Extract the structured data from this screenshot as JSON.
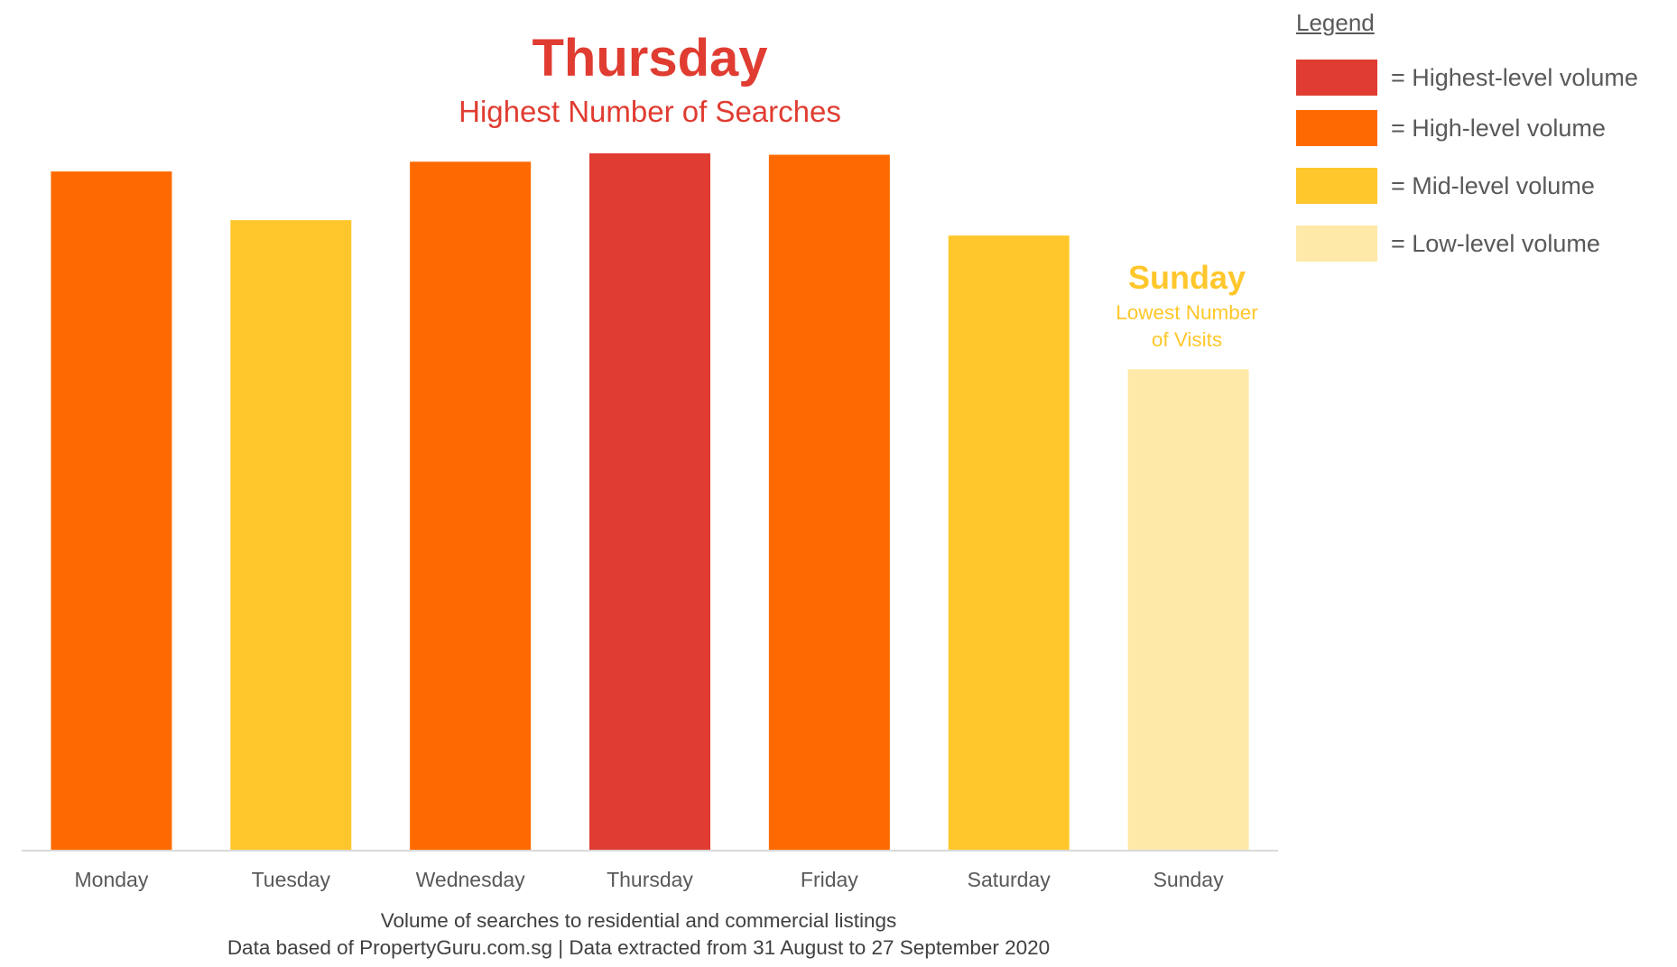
{
  "legend": {
    "title": "Legend",
    "items": [
      {
        "label": "= Highest-level volume",
        "color": "#E03C31"
      },
      {
        "label": "= High-level volume",
        "color": "#FF6A00"
      },
      {
        "label": "= Mid-level volume",
        "color": "#FFC72C"
      },
      {
        "label": "= Low-level volume",
        "color": "#FFE9A8"
      }
    ]
  },
  "highlight_top": {
    "title": "Thursday",
    "subtitle": "Highest Number of Searches",
    "color": "#E03C31"
  },
  "highlight_low": {
    "title": "Sunday",
    "subtitle_line1": "Lowest Number",
    "subtitle_line2": "of Visits",
    "color": "#FFC72C"
  },
  "footer": {
    "line1": "Volume of searches to residential and commercial listings",
    "line2": "Data based of PropertyGuru.com.sg | Data extracted from 31 August to 27 September 2020"
  },
  "chart_data": {
    "type": "bar",
    "categories": [
      "Monday",
      "Tuesday",
      "Wednesday",
      "Thursday",
      "Friday",
      "Saturday",
      "Sunday"
    ],
    "values": [
      97.4,
      90.4,
      98.8,
      100,
      99.8,
      88.2,
      69.0
    ],
    "bar_colors": [
      "#FF6A00",
      "#FFC72C",
      "#FF6A00",
      "#E03C31",
      "#FF6A00",
      "#FFC72C",
      "#FFE9A8"
    ],
    "ylim": [
      0,
      100
    ],
    "grid": false,
    "legend": "top-right",
    "xlabel": "",
    "ylabel": "",
    "title": ""
  }
}
